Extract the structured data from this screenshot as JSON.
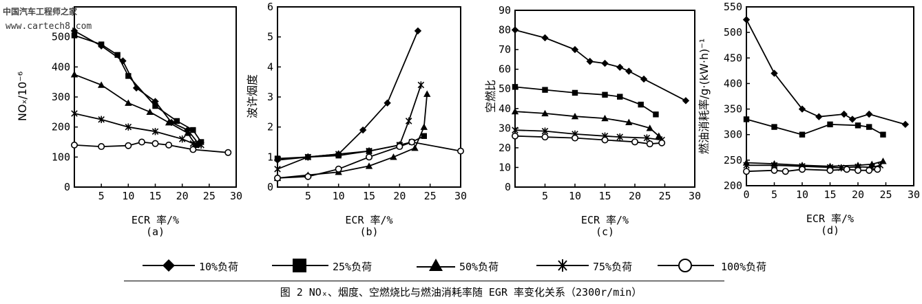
{
  "watermark": {
    "line1": "中国汽车工程师之家",
    "line2": "www.cartech8.com"
  },
  "caption": "图 2  NOₓ、烟度、空燃烧比与燃油消耗率随 EGR 率变化关系（2300r/min）",
  "chart_data": [
    {
      "type": "line",
      "panel_label": "(a)",
      "xlabel": "ECR 率/%",
      "ylabel": "NOₓ/10⁻⁶",
      "xlim": [
        0,
        30
      ],
      "ylim": [
        0,
        600
      ],
      "xticks": [
        5,
        10,
        15,
        20,
        25,
        30
      ],
      "yticks": [
        0,
        100,
        200,
        300,
        400,
        500
      ],
      "grid": false,
      "series": [
        {
          "name": "10%负荷",
          "marker": "diamond",
          "x": [
            0,
            5,
            9,
            11.5,
            15,
            18,
            21,
            23
          ],
          "y": [
            520,
            470,
            420,
            330,
            285,
            215,
            190,
            145
          ]
        },
        {
          "name": "25%负荷",
          "marker": "square",
          "x": [
            0,
            5,
            8,
            10,
            15,
            19,
            22,
            23.5
          ],
          "y": [
            505,
            475,
            440,
            370,
            270,
            220,
            190,
            150
          ]
        },
        {
          "name": "50%负荷",
          "marker": "triangle",
          "x": [
            0,
            5,
            10,
            14,
            17.5,
            21,
            22.5
          ],
          "y": [
            375,
            340,
            280,
            250,
            215,
            180,
            140
          ]
        },
        {
          "name": "75%负荷",
          "marker": "x-star",
          "x": [
            0,
            5,
            10,
            15,
            20,
            22,
            23.5
          ],
          "y": [
            245,
            225,
            200,
            185,
            160,
            145,
            140
          ]
        },
        {
          "name": "100%负荷",
          "marker": "circle",
          "x": [
            0,
            5,
            10,
            12.5,
            15,
            17.5,
            22,
            28.5
          ],
          "y": [
            140,
            135,
            138,
            150,
            145,
            140,
            125,
            115
          ]
        }
      ]
    },
    {
      "type": "line",
      "panel_label": "(b)",
      "xlabel": "ECR 率/%",
      "ylabel": "波许烟度",
      "xlim": [
        0,
        30
      ],
      "ylim": [
        0,
        6
      ],
      "xticks": [
        5,
        10,
        15,
        20,
        25,
        30
      ],
      "yticks": [
        0,
        1,
        2,
        3,
        4,
        5,
        6
      ],
      "grid": false,
      "series": [
        {
          "name": "10%负荷",
          "marker": "diamond",
          "x": [
            0,
            5,
            10,
            14,
            18,
            23
          ],
          "y": [
            0.9,
            1.0,
            1.1,
            1.9,
            2.8,
            5.2
          ]
        },
        {
          "name": "25%负荷",
          "marker": "square",
          "x": [
            0,
            5,
            10,
            15,
            20,
            22,
            24
          ],
          "y": [
            0.95,
            1.0,
            1.05,
            1.2,
            1.4,
            1.5,
            1.7
          ]
        },
        {
          "name": "50%负荷",
          "marker": "triangle",
          "x": [
            0,
            5,
            10,
            15,
            19,
            22.5,
            24,
            24.5
          ],
          "y": [
            0.3,
            0.4,
            0.5,
            0.7,
            1.0,
            1.3,
            2.0,
            3.1
          ]
        },
        {
          "name": "75%负荷",
          "marker": "x-star",
          "x": [
            0,
            5,
            10,
            15,
            20,
            21.5,
            23.5
          ],
          "y": [
            0.6,
            1.0,
            1.1,
            1.2,
            1.4,
            2.2,
            3.4
          ]
        },
        {
          "name": "100%负荷",
          "marker": "circle",
          "x": [
            0,
            5,
            10,
            15,
            20,
            22,
            30
          ],
          "y": [
            0.3,
            0.35,
            0.6,
            1.0,
            1.35,
            1.5,
            1.2
          ]
        }
      ]
    },
    {
      "type": "line",
      "panel_label": "(c)",
      "xlabel": "ECR 率/%",
      "ylabel": "空燃比",
      "xlim": [
        0,
        30
      ],
      "ylim": [
        0,
        90
      ],
      "xticks": [
        5,
        10,
        15,
        20,
        25,
        30
      ],
      "yticks": [
        0,
        10,
        20,
        30,
        40,
        50,
        60,
        70,
        80,
        90
      ],
      "grid": false,
      "series": [
        {
          "name": "10%负荷",
          "marker": "diamond",
          "x": [
            0,
            5,
            10,
            12.5,
            15,
            17.5,
            19,
            21.5,
            28.5
          ],
          "y": [
            80,
            76,
            70,
            64,
            63,
            61,
            59,
            55,
            44
          ]
        },
        {
          "name": "25%负荷",
          "marker": "square",
          "x": [
            0,
            5,
            10,
            15,
            17.5,
            21,
            23.5
          ],
          "y": [
            51,
            49.5,
            48,
            47,
            46,
            42,
            37
          ]
        },
        {
          "name": "50%负荷",
          "marker": "triangle",
          "x": [
            0,
            5,
            10,
            15,
            19,
            22.5,
            24
          ],
          "y": [
            38.5,
            37.5,
            36,
            35,
            33,
            30,
            26
          ]
        },
        {
          "name": "75%负荷",
          "marker": "x-star",
          "x": [
            0,
            5,
            10,
            15,
            17.5,
            22,
            24.5
          ],
          "y": [
            29,
            28.5,
            27,
            26,
            25.5,
            25,
            24
          ]
        },
        {
          "name": "100%负荷",
          "marker": "circle",
          "x": [
            0,
            5,
            10,
            15,
            20,
            22.5,
            24.5
          ],
          "y": [
            26,
            25.5,
            25,
            24,
            23,
            22,
            22.5
          ]
        }
      ]
    },
    {
      "type": "line",
      "panel_label": "(d)",
      "xlabel": "ECR 率/%",
      "ylabel": "燃油消耗率/g·(kW·h)⁻¹",
      "xlim": [
        0,
        30
      ],
      "ylim": [
        200,
        550
      ],
      "xticks": [
        0,
        5,
        10,
        15,
        20,
        25,
        30
      ],
      "yticks": [
        200,
        250,
        300,
        350,
        400,
        450,
        500,
        550
      ],
      "grid": false,
      "series": [
        {
          "name": "10%负荷",
          "marker": "diamond",
          "x": [
            0,
            5,
            10,
            13,
            17.5,
            19,
            22,
            28.5
          ],
          "y": [
            525,
            420,
            350,
            335,
            340,
            330,
            340,
            320
          ]
        },
        {
          "name": "25%负荷",
          "marker": "square",
          "x": [
            0,
            5,
            10,
            15,
            20,
            22,
            24.5
          ],
          "y": [
            330,
            315,
            300,
            320,
            318,
            315,
            300
          ]
        },
        {
          "name": "50%负荷",
          "marker": "triangle",
          "x": [
            0,
            5,
            10,
            15,
            20,
            22.5,
            24.5
          ],
          "y": [
            245,
            243,
            240,
            238,
            240,
            242,
            248
          ]
        },
        {
          "name": "75%负荷",
          "marker": "x-star",
          "x": [
            0,
            5,
            10,
            15,
            17,
            20,
            22.5,
            24
          ],
          "y": [
            240,
            240,
            238,
            236,
            235,
            237,
            236,
            240
          ]
        },
        {
          "name": "100%负荷",
          "marker": "circle",
          "x": [
            0,
            5,
            7,
            10,
            15,
            18,
            20,
            22,
            23.5
          ],
          "y": [
            228,
            230,
            228,
            232,
            230,
            232,
            230,
            230,
            232
          ]
        }
      ]
    }
  ]
}
